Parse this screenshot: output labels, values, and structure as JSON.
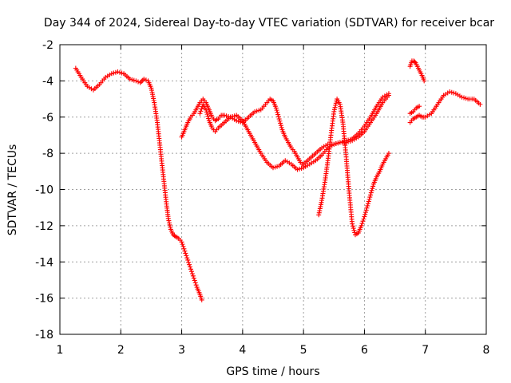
{
  "chart_data": {
    "type": "scatter",
    "title": "Day 344 of 2024, Sidereal Day-to-day VTEC variation (SDTVAR) for receiver bcar",
    "xlabel": "GPS time / hours",
    "ylabel": "SDTVAR / TECUs",
    "xlim": [
      1,
      8
    ],
    "ylim": [
      -18,
      -2
    ],
    "xticks": [
      1,
      2,
      3,
      4,
      5,
      6,
      7,
      8
    ],
    "yticks": [
      -18,
      -16,
      -14,
      -12,
      -10,
      -8,
      -6,
      -4,
      -2
    ],
    "grid": true,
    "marker": "plus",
    "color": "#ff0000",
    "series": [
      {
        "x": [
          1.26,
          1.35,
          1.45,
          1.55,
          1.65,
          1.75,
          1.85,
          1.95,
          2.05,
          2.15,
          2.25,
          2.32,
          2.38,
          2.45,
          2.5,
          2.55,
          2.6,
          2.65,
          2.7,
          2.75,
          2.78,
          2.82,
          2.86,
          2.9,
          2.95,
          3.0,
          3.05,
          3.1,
          3.15,
          3.2,
          3.25,
          3.3,
          3.33
        ],
        "y": [
          -3.3,
          -3.8,
          -4.3,
          -4.5,
          -4.2,
          -3.8,
          -3.6,
          -3.5,
          -3.6,
          -3.9,
          -4.0,
          -4.1,
          -3.9,
          -4.0,
          -4.4,
          -5.2,
          -6.3,
          -7.8,
          -9.3,
          -10.8,
          -11.6,
          -12.2,
          -12.5,
          -12.6,
          -12.7,
          -12.9,
          -13.4,
          -13.9,
          -14.4,
          -14.9,
          -15.4,
          -15.8,
          -16.1
        ]
      },
      {
        "x": [
          3.0,
          3.05,
          3.1,
          3.15,
          3.2,
          3.25,
          3.3,
          3.35,
          3.4,
          3.45,
          3.5,
          3.55,
          3.6,
          3.65,
          3.7,
          3.8,
          3.9,
          4.0,
          4.1,
          4.2,
          4.3,
          4.4,
          4.45,
          4.5,
          4.55,
          4.6,
          4.65,
          4.7,
          4.75,
          4.8,
          4.85,
          4.9,
          4.95,
          5.0
        ],
        "y": [
          -7.1,
          -6.7,
          -6.3,
          -6.0,
          -5.8,
          -5.5,
          -5.2,
          -5.0,
          -5.2,
          -5.6,
          -6.0,
          -6.2,
          -6.1,
          -5.9,
          -5.9,
          -6.0,
          -6.2,
          -6.3,
          -6.0,
          -5.7,
          -5.6,
          -5.2,
          -5.0,
          -5.1,
          -5.5,
          -6.1,
          -6.7,
          -7.1,
          -7.4,
          -7.7,
          -7.9,
          -8.2,
          -8.5,
          -8.7
        ]
      },
      {
        "x": [
          3.3,
          3.35,
          3.4,
          3.45,
          3.5,
          3.55,
          3.6,
          3.7,
          3.8,
          3.9,
          4.0,
          4.1,
          4.2,
          4.3,
          4.4,
          4.5,
          4.6,
          4.7,
          4.8,
          4.9,
          5.0,
          5.1,
          5.2,
          5.3,
          5.4,
          5.5,
          5.6,
          5.7,
          5.8,
          5.9,
          6.0,
          6.1,
          6.2,
          6.3,
          6.4
        ],
        "y": [
          -5.8,
          -5.3,
          -5.6,
          -6.2,
          -6.6,
          -6.8,
          -6.6,
          -6.3,
          -6.0,
          -5.9,
          -6.2,
          -6.8,
          -7.4,
          -8.0,
          -8.5,
          -8.8,
          -8.7,
          -8.4,
          -8.6,
          -8.9,
          -8.8,
          -8.6,
          -8.4,
          -8.1,
          -7.7,
          -7.5,
          -7.4,
          -7.4,
          -7.3,
          -7.1,
          -6.8,
          -6.3,
          -5.8,
          -5.2,
          -4.8
        ]
      },
      {
        "x": [
          5.0,
          5.1,
          5.2,
          5.3,
          5.4,
          5.5,
          5.6,
          5.7,
          5.8,
          5.9,
          6.0,
          6.1,
          6.2,
          6.3,
          6.4
        ],
        "y": [
          -8.6,
          -8.3,
          -8.0,
          -7.7,
          -7.5,
          -7.5,
          -7.4,
          -7.3,
          -7.2,
          -6.9,
          -6.5,
          -6.0,
          -5.4,
          -4.9,
          -4.7
        ]
      },
      {
        "x": [
          5.25,
          5.3,
          5.35,
          5.4,
          5.45,
          5.5,
          5.55,
          5.6,
          5.65,
          5.7,
          5.75,
          5.8,
          5.85,
          5.9,
          5.95,
          6.0,
          6.05,
          6.1,
          6.15,
          6.2,
          6.25,
          6.3,
          6.35,
          6.4
        ],
        "y": [
          -11.4,
          -10.6,
          -9.6,
          -8.4,
          -7.0,
          -5.7,
          -5.0,
          -5.3,
          -6.4,
          -8.2,
          -10.2,
          -11.9,
          -12.5,
          -12.4,
          -12.0,
          -11.5,
          -10.9,
          -10.3,
          -9.7,
          -9.3,
          -9.0,
          -8.6,
          -8.3,
          -8.0
        ]
      },
      {
        "x": [
          6.75,
          6.78,
          6.81,
          6.84,
          6.87,
          6.9,
          6.93,
          6.96,
          6.98
        ],
        "y": [
          -3.2,
          -2.9,
          -2.9,
          -3.0,
          -3.2,
          -3.4,
          -3.6,
          -3.8,
          -4.0
        ]
      },
      {
        "x": [
          6.75,
          6.8,
          6.85,
          6.9,
          6.95,
          7.0,
          7.1,
          7.2,
          7.3,
          7.4,
          7.5,
          7.6,
          7.7,
          7.8,
          7.9
        ],
        "y": [
          -6.3,
          -6.1,
          -6.0,
          -5.9,
          -6.0,
          -6.0,
          -5.8,
          -5.3,
          -4.8,
          -4.6,
          -4.7,
          -4.9,
          -5.0,
          -5.0,
          -5.3
        ]
      },
      {
        "x": [
          6.75,
          6.8,
          6.85,
          6.9
        ],
        "y": [
          -5.8,
          -5.7,
          -5.5,
          -5.4
        ]
      }
    ]
  }
}
